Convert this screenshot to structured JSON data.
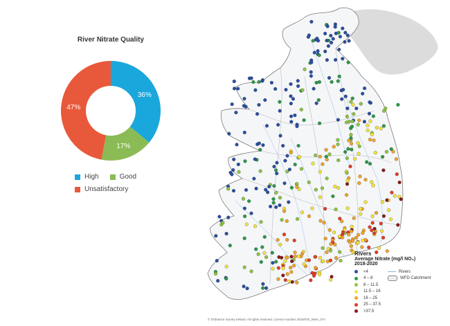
{
  "donut": {
    "title": "River Nitrate Quality",
    "legend": {
      "high": "High",
      "good": "Good",
      "unsatisfactory": "Unsatisfactory"
    }
  },
  "chart_data": {
    "type": "pie",
    "title": "River Nitrate Quality",
    "categories": [
      "High",
      "Good",
      "Unsatisfactory"
    ],
    "values": [
      36,
      17,
      47
    ],
    "labels": [
      "36%",
      "17%",
      "47%"
    ],
    "colors": [
      "#1aa7dc",
      "#8bbb54",
      "#e8593b"
    ],
    "legend_position": "bottom"
  },
  "map_legend": {
    "title1": "Rivers",
    "title2": "Average Nitrate (mg/l NO₃)",
    "title3": "2018-2020",
    "classes": [
      {
        "label": "<4",
        "color": "#2a4fa3"
      },
      {
        "label": "4 – 8",
        "color": "#2a9a47"
      },
      {
        "label": "8 – 11.5",
        "color": "#8dc641"
      },
      {
        "label": "11.5 – 16",
        "color": "#f5e63a"
      },
      {
        "label": "16 – 25",
        "color": "#f1a52a"
      },
      {
        "label": "25 – 37.5",
        "color": "#e43b26"
      },
      {
        "label": ">37.5",
        "color": "#8b1a1a"
      }
    ],
    "rivers_label": "Rivers",
    "catchment_label": "WFD Catchment"
  },
  "copyright": "© Ordnance Survey Ireland. All rights reserved. Licence number 2019/OSi_NMA_074"
}
